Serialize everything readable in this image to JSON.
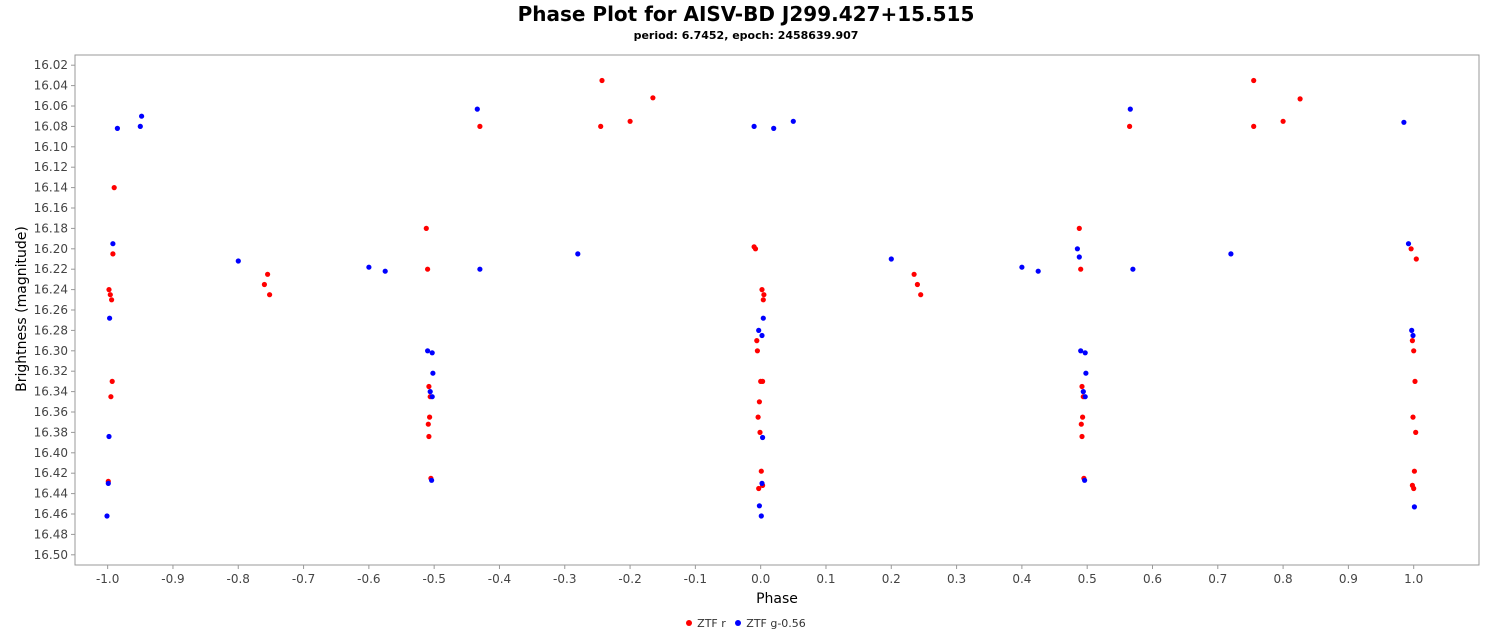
{
  "chart_data": {
    "type": "scatter",
    "title": "Phase Plot for AISV-BD J299.427+15.515",
    "subtitle": "period: 6.7452, epoch: 2458639.907",
    "xlabel": "Phase",
    "ylabel": "Brightness (magnitude)",
    "xlim": [
      -1.05,
      1.1
    ],
    "ylim": [
      16.01,
      16.51
    ],
    "y_inverted": true,
    "x_ticks": [
      -1.0,
      -0.9,
      -0.8,
      -0.7,
      -0.6,
      -0.5,
      -0.4,
      -0.3,
      -0.2,
      -0.1,
      0.0,
      0.1,
      0.2,
      0.3,
      0.4,
      0.5,
      0.6,
      0.7,
      0.8,
      0.9,
      1.0
    ],
    "x_tick_labels": [
      "-1.0",
      "-0.9",
      "-0.8",
      "-0.7",
      "-0.6",
      "-0.5",
      "-0.4",
      "-0.3",
      "-0.2",
      "-0.1",
      "0.0",
      "0.1",
      "0.2",
      "0.3",
      "0.4",
      "0.5",
      "0.6",
      "0.7",
      "0.8",
      "0.9",
      "1.0"
    ],
    "y_ticks": [
      16.02,
      16.04,
      16.06,
      16.08,
      16.1,
      16.12,
      16.14,
      16.16,
      16.18,
      16.2,
      16.22,
      16.24,
      16.26,
      16.28,
      16.3,
      16.32,
      16.34,
      16.36,
      16.38,
      16.4,
      16.42,
      16.44,
      16.46,
      16.48,
      16.5
    ],
    "y_tick_labels": [
      "16.02",
      "16.04",
      "16.06",
      "16.08",
      "16.10",
      "16.12",
      "16.14",
      "16.16",
      "16.18",
      "16.20",
      "16.22",
      "16.24",
      "16.26",
      "16.28",
      "16.30",
      "16.32",
      "16.34",
      "16.36",
      "16.38",
      "16.40",
      "16.42",
      "16.44",
      "16.46",
      "16.48",
      "16.50"
    ],
    "grid": false,
    "legend_placement": "bottom-center",
    "series": [
      {
        "name": "ZTF r",
        "color": "#ff0000",
        "points": [
          [
            -0.998,
            16.24
          ],
          [
            -0.996,
            16.245
          ],
          [
            -0.994,
            16.25
          ],
          [
            -0.993,
            16.33
          ],
          [
            -0.995,
            16.345
          ],
          [
            -0.999,
            16.428
          ],
          [
            -0.992,
            16.205
          ],
          [
            -0.99,
            16.14
          ],
          [
            -0.51,
            16.22
          ],
          [
            -0.508,
            16.335
          ],
          [
            -0.506,
            16.345
          ],
          [
            -0.507,
            16.365
          ],
          [
            -0.509,
            16.372
          ],
          [
            -0.508,
            16.384
          ],
          [
            -0.505,
            16.425
          ],
          [
            -0.512,
            16.18
          ],
          [
            0.002,
            16.24
          ],
          [
            0.005,
            16.245
          ],
          [
            0.004,
            16.25
          ],
          [
            0.003,
            16.33
          ],
          [
            0.0,
            16.33
          ],
          [
            -0.002,
            16.35
          ],
          [
            -0.004,
            16.365
          ],
          [
            -0.001,
            16.38
          ],
          [
            0.001,
            16.418
          ],
          [
            0.003,
            16.432
          ],
          [
            -0.003,
            16.435
          ],
          [
            -0.005,
            16.3
          ],
          [
            -0.006,
            16.29
          ],
          [
            -0.008,
            16.2
          ],
          [
            -0.01,
            16.198
          ],
          [
            0.49,
            16.22
          ],
          [
            0.492,
            16.335
          ],
          [
            0.494,
            16.345
          ],
          [
            0.493,
            16.365
          ],
          [
            0.491,
            16.372
          ],
          [
            0.492,
            16.384
          ],
          [
            0.495,
            16.425
          ],
          [
            0.488,
            16.18
          ],
          [
            0.998,
            16.29
          ],
          [
            1.0,
            16.3
          ],
          [
            1.002,
            16.33
          ],
          [
            0.999,
            16.365
          ],
          [
            1.003,
            16.38
          ],
          [
            1.001,
            16.418
          ],
          [
            0.998,
            16.432
          ],
          [
            1.0,
            16.435
          ],
          [
            1.004,
            16.21
          ],
          [
            0.996,
            16.2
          ],
          [
            -0.243,
            16.035
          ],
          [
            -0.165,
            16.052
          ],
          [
            0.755,
            16.035
          ],
          [
            0.826,
            16.053
          ],
          [
            -0.76,
            16.235
          ],
          [
            -0.755,
            16.225
          ],
          [
            -0.752,
            16.245
          ],
          [
            0.24,
            16.235
          ],
          [
            0.245,
            16.245
          ],
          [
            0.235,
            16.225
          ],
          [
            -0.2,
            16.075
          ],
          [
            -0.245,
            16.08
          ],
          [
            0.8,
            16.075
          ],
          [
            0.755,
            16.08
          ],
          [
            -0.43,
            16.08
          ],
          [
            0.565,
            16.08
          ]
        ]
      },
      {
        "name": "ZTF g-0.56",
        "color": "#0000ff",
        "points": [
          [
            -0.997,
            16.268
          ],
          [
            -0.999,
            16.43
          ],
          [
            -1.001,
            16.462
          ],
          [
            -0.998,
            16.384
          ],
          [
            -0.992,
            16.195
          ],
          [
            -0.985,
            16.082
          ],
          [
            -0.95,
            16.08
          ],
          [
            -0.948,
            16.07
          ],
          [
            -0.51,
            16.3
          ],
          [
            -0.503,
            16.302
          ],
          [
            -0.502,
            16.322
          ],
          [
            -0.503,
            16.345
          ],
          [
            -0.506,
            16.34
          ],
          [
            -0.504,
            16.427
          ],
          [
            -0.003,
            16.28
          ],
          [
            0.004,
            16.268
          ],
          [
            0.002,
            16.285
          ],
          [
            0.003,
            16.385
          ],
          [
            -0.002,
            16.452
          ],
          [
            0.001,
            16.462
          ],
          [
            0.002,
            16.43
          ],
          [
            -0.01,
            16.08
          ],
          [
            0.02,
            16.082
          ],
          [
            0.05,
            16.075
          ],
          [
            0.49,
            16.3
          ],
          [
            0.497,
            16.302
          ],
          [
            0.498,
            16.322
          ],
          [
            0.497,
            16.345
          ],
          [
            0.494,
            16.34
          ],
          [
            0.496,
            16.427
          ],
          [
            0.488,
            16.208
          ],
          [
            0.485,
            16.2
          ],
          [
            0.997,
            16.28
          ],
          [
            0.999,
            16.285
          ],
          [
            1.001,
            16.453
          ],
          [
            0.992,
            16.195
          ],
          [
            0.985,
            16.076
          ],
          [
            -0.434,
            16.063
          ],
          [
            0.566,
            16.063
          ],
          [
            -0.43,
            16.22
          ],
          [
            0.57,
            16.22
          ],
          [
            -0.6,
            16.218
          ],
          [
            -0.575,
            16.222
          ],
          [
            0.4,
            16.218
          ],
          [
            0.425,
            16.222
          ],
          [
            -0.8,
            16.212
          ],
          [
            0.2,
            16.21
          ],
          [
            -0.28,
            16.205
          ],
          [
            0.72,
            16.205
          ]
        ]
      }
    ]
  }
}
